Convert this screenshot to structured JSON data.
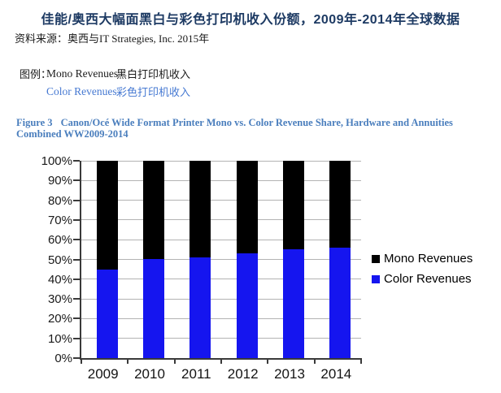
{
  "page": {
    "title": "佳能/奥西大幅面黑白与彩色打印机收入份额，2009年-2014年全球数据",
    "source": "资料来源：奥西与IT Strategies, Inc. 2015年",
    "legend_key": {
      "prefix": "图例：",
      "rows": [
        {
          "en": "Mono Revenues",
          "zh": "黑白打印机收入",
          "color": "#1a1a1a"
        },
        {
          "en": "Color Revenues",
          "zh": "彩色打印机收入",
          "color": "#4679d2"
        }
      ]
    },
    "figure_caption": {
      "label": "Figure 3",
      "text": "Canon/Océ Wide Format Printer Mono vs. Color Revenue Share, Hardware and Annuities Combined WW2009-2014"
    }
  },
  "chart_data": {
    "type": "bar",
    "stacked": true,
    "title": "Canon/Océ Wide Format Printer Mono vs. Color Revenue Share WW2009-2014",
    "categories": [
      "2009",
      "2010",
      "2011",
      "2012",
      "2013",
      "2014"
    ],
    "series": [
      {
        "name": "Color Revenues",
        "color": "#1515ef",
        "values": [
          45,
          50,
          51,
          53,
          55,
          56
        ]
      },
      {
        "name": "Mono Revenues",
        "color": "#000000",
        "values": [
          55,
          50,
          49,
          47,
          45,
          44
        ]
      }
    ],
    "legend": [
      {
        "label": "Mono Revenues",
        "color": "#000000"
      },
      {
        "label": "Color Revenues",
        "color": "#1515ef"
      }
    ],
    "y_axis": {
      "min": 0,
      "max": 100,
      "step": 10,
      "tick_suffix": "%"
    },
    "xlabel": "",
    "ylabel": "",
    "grid": true,
    "legend_position": "right",
    "gridline_color": "#b3b3b3"
  }
}
